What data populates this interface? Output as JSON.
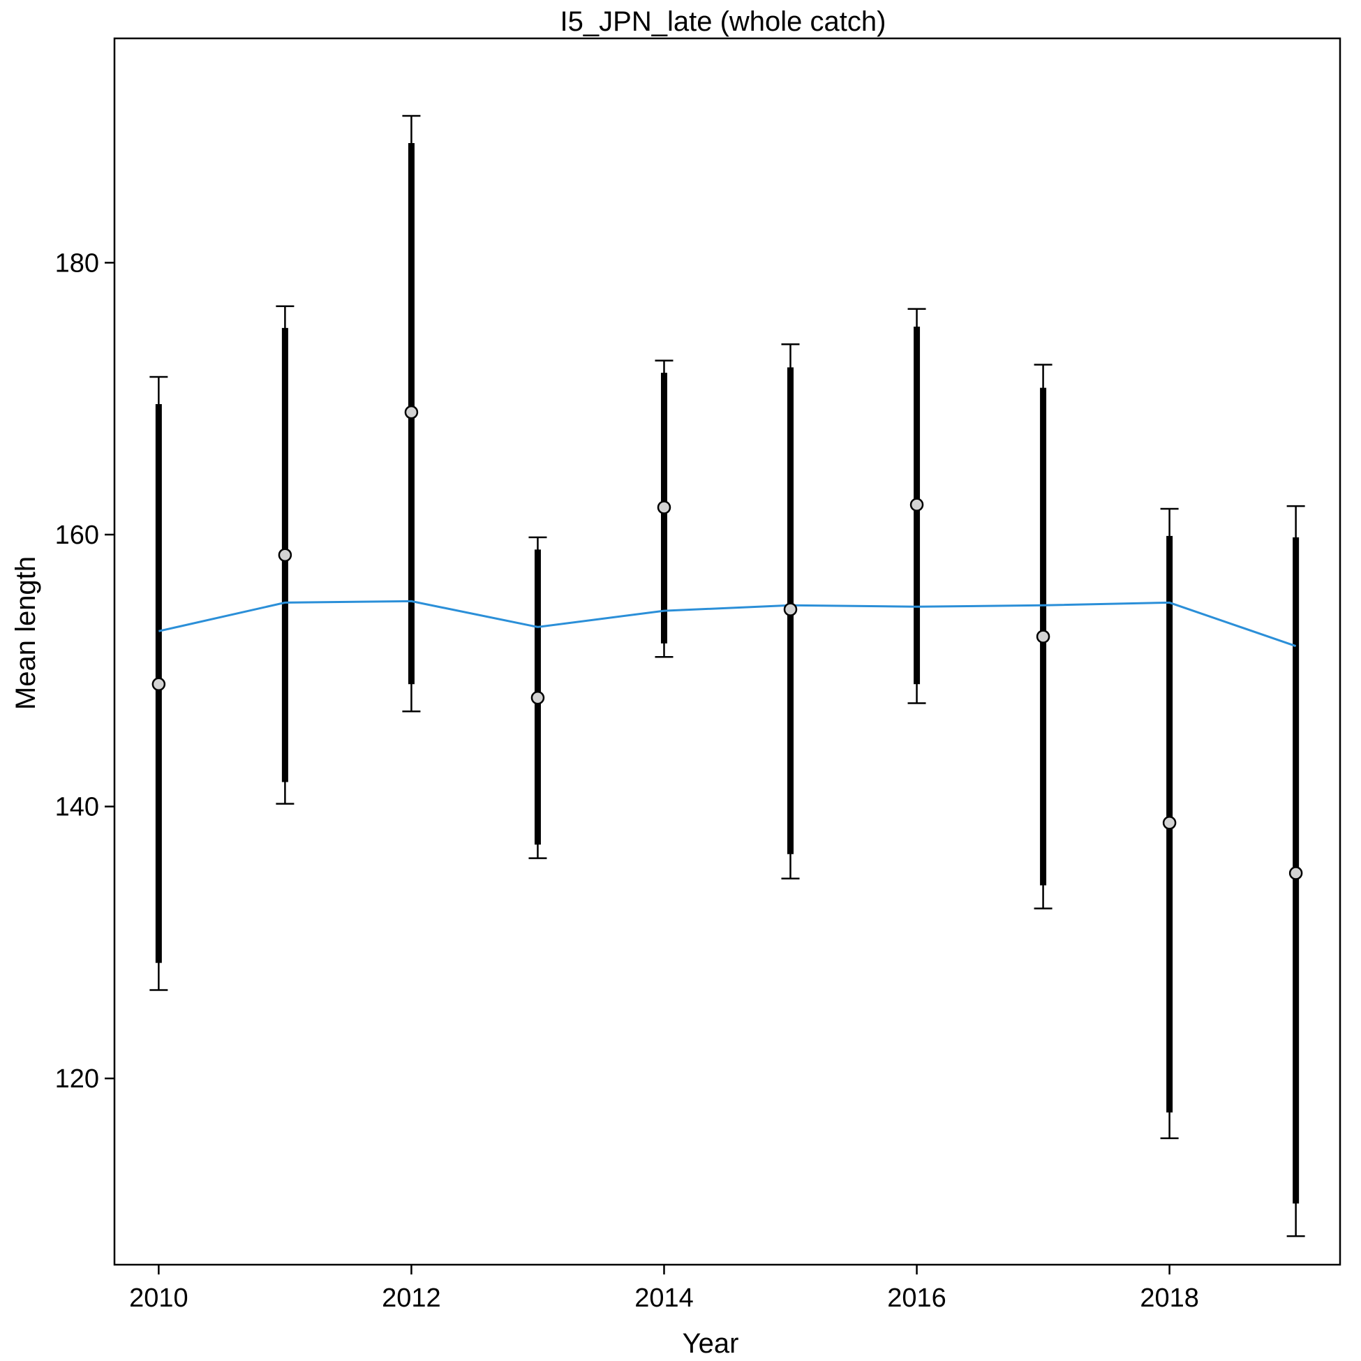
{
  "chart_data": {
    "type": "line",
    "title": "I5_JPN_late (whole catch)",
    "xlabel": "Year",
    "ylabel": "Mean length",
    "xlim": [
      2009.65,
      2019.35
    ],
    "ylim": [
      106.3,
      196.5
    ],
    "xticks": [
      2010,
      2012,
      2014,
      2016,
      2018
    ],
    "yticks": [
      120,
      140,
      160,
      180
    ],
    "grid": false,
    "colors": {
      "expected": "#2b8fd8",
      "observed_fill": "#d3d3d3",
      "bars": "#000000"
    },
    "x": [
      2010,
      2011,
      2012,
      2013,
      2014,
      2015,
      2016,
      2017,
      2018,
      2019
    ],
    "series": [
      {
        "kind": "observed_points",
        "values": [
          149.0,
          158.5,
          169.0,
          148.0,
          162.0,
          154.5,
          162.2,
          152.5,
          138.8,
          135.1
        ],
        "inner_lower": [
          128.5,
          141.8,
          149.0,
          137.2,
          152.0,
          136.5,
          149.0,
          134.2,
          117.5,
          110.8
        ],
        "inner_upper": [
          169.6,
          175.2,
          188.8,
          158.9,
          171.9,
          172.3,
          175.3,
          170.8,
          159.9,
          159.8
        ],
        "outer_lower": [
          126.5,
          140.2,
          147.0,
          136.2,
          151.0,
          134.7,
          147.6,
          132.5,
          115.6,
          108.4
        ],
        "outer_upper": [
          171.6,
          176.8,
          190.8,
          159.8,
          172.8,
          174.0,
          176.6,
          172.5,
          161.9,
          162.1
        ]
      },
      {
        "kind": "expected_line",
        "values": [
          152.9,
          155.0,
          155.1,
          153.2,
          154.4,
          154.8,
          154.7,
          154.8,
          155.0,
          151.8
        ]
      }
    ]
  }
}
